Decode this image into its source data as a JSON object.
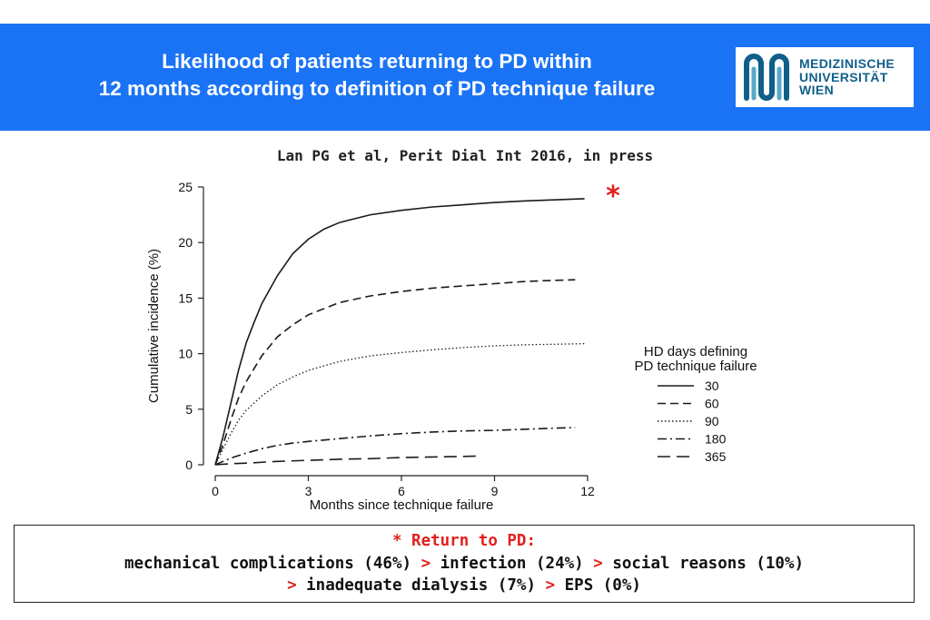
{
  "header": {
    "title_line1": "Likelihood of patients returning to PD within",
    "title_line2": "12 months according to definition of  PD technique failure",
    "logo_lines": [
      "MEDIZINISCHE",
      "UNIVERSITÄT",
      "WIEN"
    ],
    "background": "#1a73f5"
  },
  "citation": "Lan PG et al, Perit Dial Int 2016, in press",
  "chart_data": {
    "type": "line",
    "title": "",
    "xlabel": "Months since technique failure",
    "ylabel": "Cumulative incidence (%)",
    "xlim": [
      0,
      12
    ],
    "ylim": [
      0,
      25
    ],
    "xticks": [
      0,
      3,
      6,
      9,
      12
    ],
    "yticks": [
      0,
      5,
      10,
      15,
      20,
      25
    ],
    "grid": false,
    "legend_title_line1": "HD days defining",
    "legend_title_line2": "PD technique failure",
    "legend_position": "right",
    "annotation": "*",
    "series": [
      {
        "name": "30",
        "dash": "solid",
        "x": [
          0,
          0.25,
          0.5,
          0.75,
          1,
          1.25,
          1.5,
          2,
          2.5,
          3,
          3.5,
          4,
          5,
          6,
          7,
          8,
          9,
          10,
          11,
          11.9
        ],
        "y": [
          0,
          2.5,
          5.5,
          8.5,
          11,
          12.8,
          14.5,
          17,
          19,
          20.3,
          21.2,
          21.8,
          22.5,
          22.9,
          23.2,
          23.4,
          23.6,
          23.75,
          23.85,
          23.95
        ]
      },
      {
        "name": "60",
        "dash": "dash",
        "x": [
          0,
          0.25,
          0.5,
          0.75,
          1,
          1.5,
          2,
          2.5,
          3,
          4,
          5,
          6,
          7,
          8,
          9,
          10,
          11,
          11.6
        ],
        "y": [
          0,
          1.8,
          4,
          6,
          7.5,
          9.8,
          11.5,
          12.6,
          13.5,
          14.6,
          15.2,
          15.6,
          15.9,
          16.1,
          16.3,
          16.5,
          16.6,
          16.65
        ]
      },
      {
        "name": "90",
        "dash": "dot",
        "x": [
          0,
          0.25,
          0.5,
          0.75,
          1,
          1.5,
          2,
          2.5,
          3,
          4,
          5,
          6,
          7,
          8,
          9,
          10,
          11,
          11.9
        ],
        "y": [
          0,
          1.4,
          2.8,
          4,
          4.9,
          6.2,
          7.2,
          7.9,
          8.5,
          9.3,
          9.8,
          10.1,
          10.35,
          10.55,
          10.7,
          10.8,
          10.85,
          10.9
        ]
      },
      {
        "name": "180",
        "dash": "dashdot",
        "x": [
          0,
          0.5,
          1,
          1.5,
          2,
          2.5,
          3,
          4,
          5,
          6,
          7,
          8,
          9,
          10,
          11,
          11.6
        ],
        "y": [
          0,
          0.6,
          1.05,
          1.45,
          1.75,
          1.95,
          2.1,
          2.35,
          2.6,
          2.8,
          2.95,
          3.05,
          3.1,
          3.2,
          3.3,
          3.35
        ]
      },
      {
        "name": "365",
        "dash": "longdash",
        "x": [
          0,
          0.5,
          1,
          2,
          3,
          4,
          5,
          6,
          7,
          8,
          8.6
        ],
        "y": [
          0,
          0.1,
          0.15,
          0.3,
          0.4,
          0.5,
          0.55,
          0.65,
          0.7,
          0.75,
          0.8
        ]
      }
    ]
  },
  "footer": {
    "line1": "* Return to PD:",
    "line2_parts": [
      {
        "text": "mechanical complications (46%) ",
        "red": false
      },
      {
        "text": ">",
        "red": true
      },
      {
        "text": " infection (24%) ",
        "red": false
      },
      {
        "text": ">",
        "red": true
      },
      {
        "text": " social reasons (10%)",
        "red": false
      }
    ],
    "line3_parts": [
      {
        "text": ">",
        "red": true
      },
      {
        "text": " inadequate dialysis (7%) ",
        "red": false
      },
      {
        "text": ">",
        "red": true
      },
      {
        "text": " EPS (0%)",
        "red": false
      }
    ],
    "accent": "#e0201c"
  }
}
